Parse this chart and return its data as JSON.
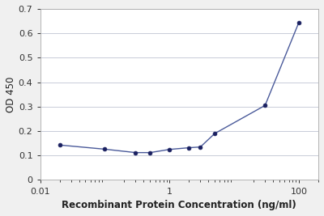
{
  "x": [
    0.02,
    0.1,
    0.3,
    0.5,
    1.0,
    2.0,
    3.0,
    5.0,
    30.0,
    100.0
  ],
  "y": [
    0.143,
    0.126,
    0.112,
    0.112,
    0.125,
    0.132,
    0.135,
    0.19,
    0.305,
    0.645
  ],
  "xlabel": "Recombinant Protein Concentration (ng/ml)",
  "ylabel": "OD 450",
  "xlim": [
    0.01,
    200
  ],
  "ylim": [
    0,
    0.7
  ],
  "yticks": [
    0,
    0.1,
    0.2,
    0.3,
    0.4,
    0.5,
    0.6,
    0.7
  ],
  "xtick_labels": [
    "0.01",
    "1",
    "100"
  ],
  "xtick_positions": [
    0.01,
    1,
    100
  ],
  "line_color": "#4a5a9a",
  "marker_color": "#1a2060",
  "plot_bg_color": "#ffffff",
  "fig_bg_color": "#f0f0f0",
  "grid_color": "#c8ccd8",
  "xlabel_fontsize": 8.5,
  "ylabel_fontsize": 8.5,
  "tick_fontsize": 8
}
